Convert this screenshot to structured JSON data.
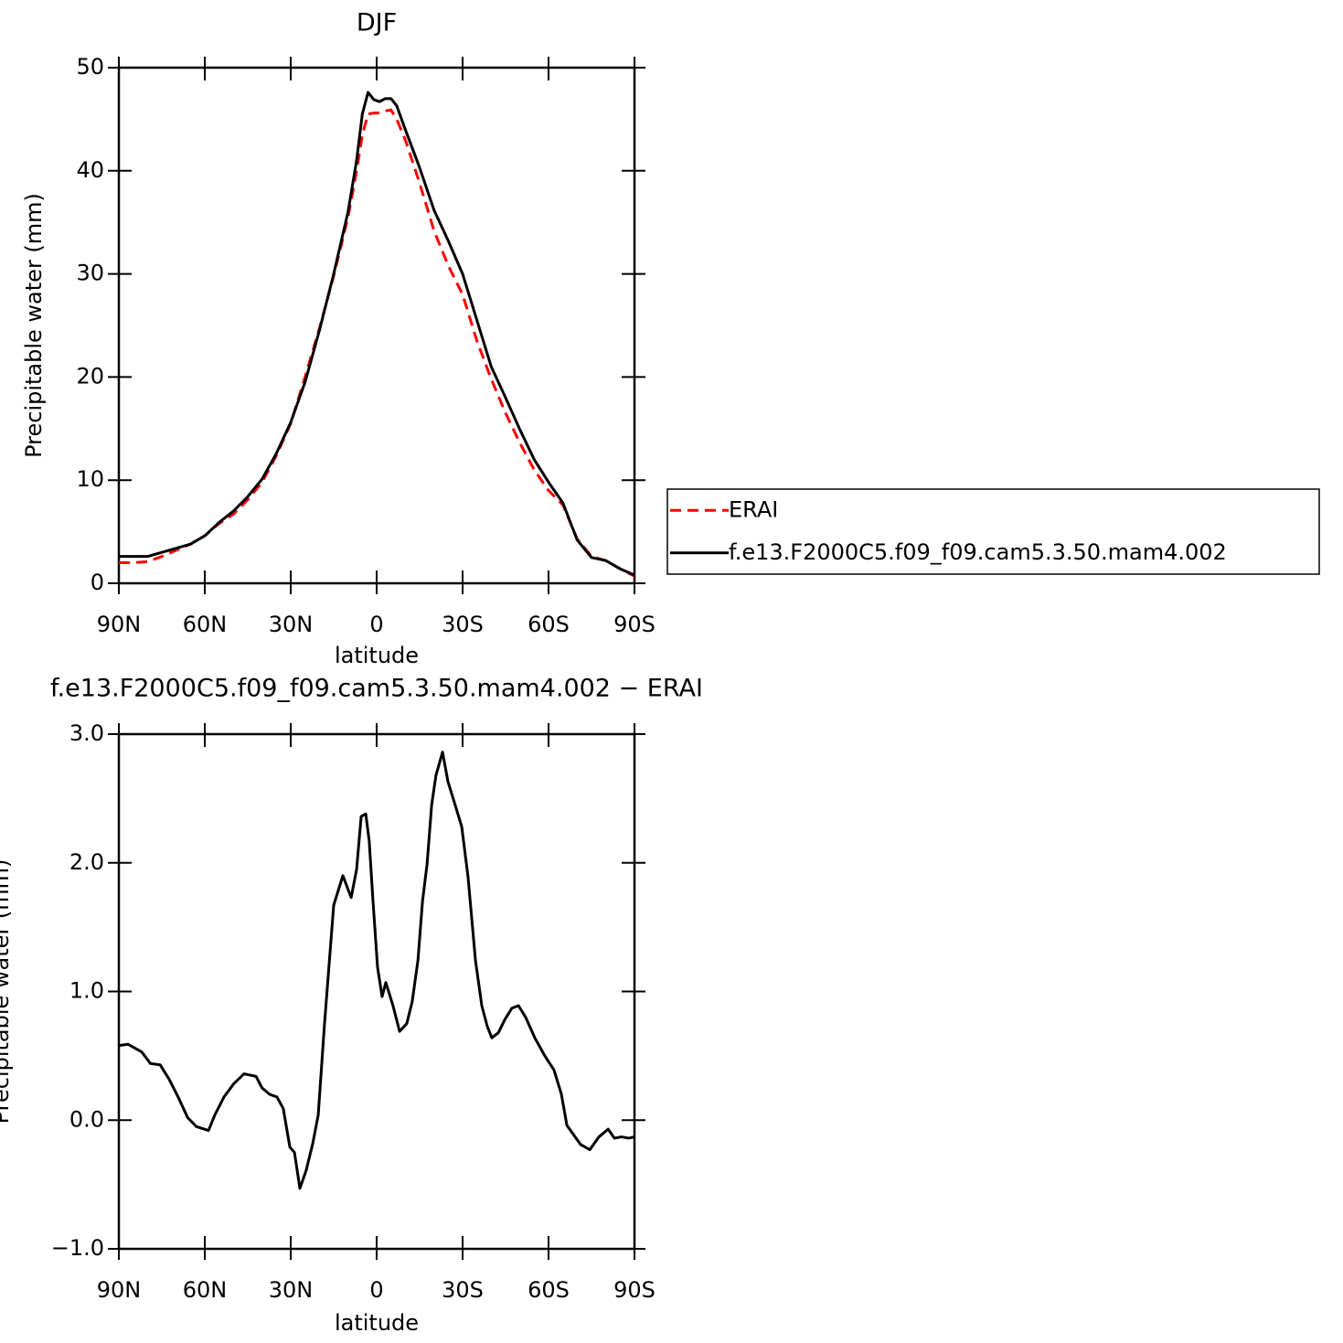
{
  "chart_data": [
    {
      "type": "line",
      "title": "DJF",
      "xlabel": "latitude",
      "ylabel": "Precipitable water (mm)",
      "x": [
        90,
        85,
        80,
        75,
        70,
        65,
        60,
        55,
        50,
        45,
        40,
        35,
        30,
        25,
        20,
        15,
        10,
        7,
        5,
        3,
        1,
        -1,
        -3,
        -5,
        -7,
        -10,
        -15,
        -20,
        -25,
        -30,
        -35,
        -40,
        -45,
        -50,
        -55,
        -60,
        -65,
        -70,
        -75,
        -80,
        -85,
        -90
      ],
      "series": [
        {
          "name": "ERAI",
          "color": "#ff0000",
          "dash": "dashed",
          "values": [
            2.0,
            2.0,
            2.1,
            2.6,
            3.2,
            3.8,
            4.6,
            5.8,
            6.7,
            8.1,
            9.8,
            12.4,
            15.5,
            20.0,
            24.7,
            29.8,
            35.5,
            40.0,
            43.5,
            45.5,
            45.6,
            45.6,
            45.8,
            45.9,
            45.0,
            43.0,
            38.8,
            34.2,
            30.8,
            28.0,
            23.5,
            19.8,
            16.5,
            13.6,
            11.0,
            9.0,
            7.6,
            4.3,
            2.6,
            2.2,
            1.4,
            0.7
          ]
        },
        {
          "name": "f.e13.F2000C5.f09_f09.cam5.3.50.mam4.002",
          "color": "#000000",
          "dash": "solid",
          "values": [
            2.6,
            2.6,
            2.6,
            3.0,
            3.4,
            3.8,
            4.6,
            5.9,
            7.0,
            8.4,
            10.1,
            12.6,
            15.6,
            19.5,
            24.5,
            30.0,
            36.0,
            41.0,
            45.5,
            47.6,
            46.9,
            46.7,
            47.0,
            47.0,
            46.3,
            44.0,
            40.3,
            36.2,
            33.2,
            30.0,
            25.5,
            21.0,
            18.0,
            14.9,
            12.0,
            9.8,
            7.8,
            4.2,
            2.5,
            2.2,
            1.4,
            0.8
          ]
        }
      ],
      "xlim": [
        90,
        -90
      ],
      "xticks": [
        {
          "value": 90,
          "label": "90N"
        },
        {
          "value": 60,
          "label": "60N"
        },
        {
          "value": 30,
          "label": "30N"
        },
        0,
        {
          "value": -30,
          "label": "30S"
        },
        {
          "value": -60,
          "label": "60S"
        },
        {
          "value": -90,
          "label": "90S"
        }
      ],
      "ylim": [
        0,
        50
      ],
      "yticks": [
        0,
        10,
        20,
        30,
        40,
        50
      ],
      "legend": "right"
    },
    {
      "type": "line",
      "title": "f.e13.F2000C5.f09_f09.cam5.3.50.mam4.002 − ERAI",
      "xlabel": "latitude",
      "ylabel": "Precipitable water (mm)",
      "x": [
        90,
        86.8,
        82,
        79,
        75.6,
        72.5,
        69.3,
        66,
        62.9,
        58.7,
        56.5,
        53.3,
        50,
        46.3,
        42.1,
        40,
        37.3,
        34.8,
        32.6,
        30.3,
        28.7,
        26.8,
        24.6,
        22.3,
        20.4,
        18.2,
        15,
        11.8,
        8.9,
        7,
        5.4,
        3.8,
        2.6,
        1.3,
        -0.3,
        -1.9,
        -3.2,
        -5.7,
        -8,
        -10.5,
        -12.4,
        -14.4,
        -16,
        -17.6,
        -19.2,
        -20.7,
        -23,
        -24.9,
        -27.4,
        -29.7,
        -31.9,
        -34.5,
        -36.7,
        -38.6,
        -40.2,
        -42.5,
        -44.7,
        -47.2,
        -49.5,
        -52,
        -55.2,
        -58.7,
        -61.9,
        -64.5,
        -66.4,
        -68,
        -71.2,
        -74.4,
        -77.6,
        -80.8,
        -83,
        -85.5,
        -88,
        -90
      ],
      "values": [
        0.58,
        0.59,
        0.53,
        0.44,
        0.43,
        0.32,
        0.18,
        0.02,
        -0.05,
        -0.08,
        0.04,
        0.18,
        0.28,
        0.36,
        0.34,
        0.25,
        0.2,
        0.18,
        0.09,
        -0.21,
        -0.25,
        -0.53,
        -0.39,
        -0.18,
        0.04,
        0.75,
        1.67,
        1.9,
        1.73,
        1.95,
        2.36,
        2.38,
        2.17,
        1.71,
        1.19,
        0.96,
        1.07,
        0.89,
        0.69,
        0.75,
        0.92,
        1.24,
        1.7,
        1.99,
        2.45,
        2.68,
        2.86,
        2.63,
        2.45,
        2.28,
        1.89,
        1.24,
        0.89,
        0.73,
        0.64,
        0.68,
        0.78,
        0.87,
        0.89,
        0.8,
        0.64,
        0.5,
        0.39,
        0.2,
        -0.04,
        -0.09,
        -0.19,
        -0.23,
        -0.13,
        -0.07,
        -0.14,
        -0.13,
        -0.14,
        -0.13
      ],
      "color": "#000000",
      "xlim": [
        90,
        -90
      ],
      "xticks": [
        {
          "value": 90,
          "label": "90N"
        },
        {
          "value": 60,
          "label": "60N"
        },
        {
          "value": 30,
          "label": "30N"
        },
        0,
        {
          "value": -30,
          "label": "30S"
        },
        {
          "value": -60,
          "label": "60S"
        },
        {
          "value": -90,
          "label": "90S"
        }
      ],
      "ylim": [
        -1,
        3
      ],
      "yticks": [
        {
          "value": -1,
          "label": "−1.0"
        },
        {
          "value": 0,
          "label": "0.0"
        },
        {
          "value": 1,
          "label": "1.0"
        },
        {
          "value": 2,
          "label": "2.0"
        },
        {
          "value": 3,
          "label": "3.0"
        }
      ]
    }
  ]
}
